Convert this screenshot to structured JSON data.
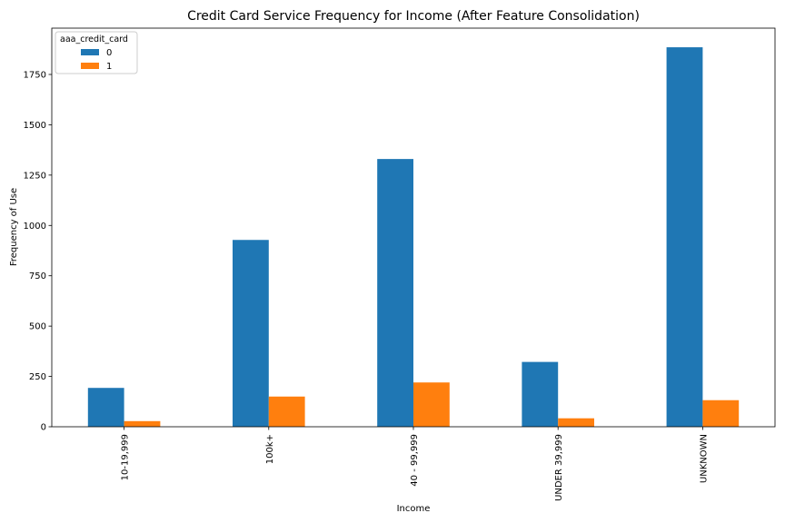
{
  "chart_data": {
    "type": "bar",
    "title": "Credit Card Service Frequency for Income (After Feature Consolidation)",
    "xlabel": "Income",
    "ylabel": "Frequency of Use",
    "categories": [
      "10-19,999",
      "100k+",
      "40 - 99,999",
      "UNDER 39,999",
      "UNKNOWN"
    ],
    "series": [
      {
        "name": "0",
        "color": "#1f77b4",
        "values": [
          193,
          928,
          1330,
          322,
          1885
        ]
      },
      {
        "name": "1",
        "color": "#ff7f0e",
        "values": [
          28,
          150,
          220,
          42,
          132
        ]
      }
    ],
    "ylim": [
      0,
      1980
    ],
    "yticks": [
      0,
      250,
      500,
      750,
      1000,
      1250,
      1500,
      1750
    ],
    "legend": {
      "title": "aaa_credit_card",
      "placement": "top-left"
    },
    "grid": false
  }
}
